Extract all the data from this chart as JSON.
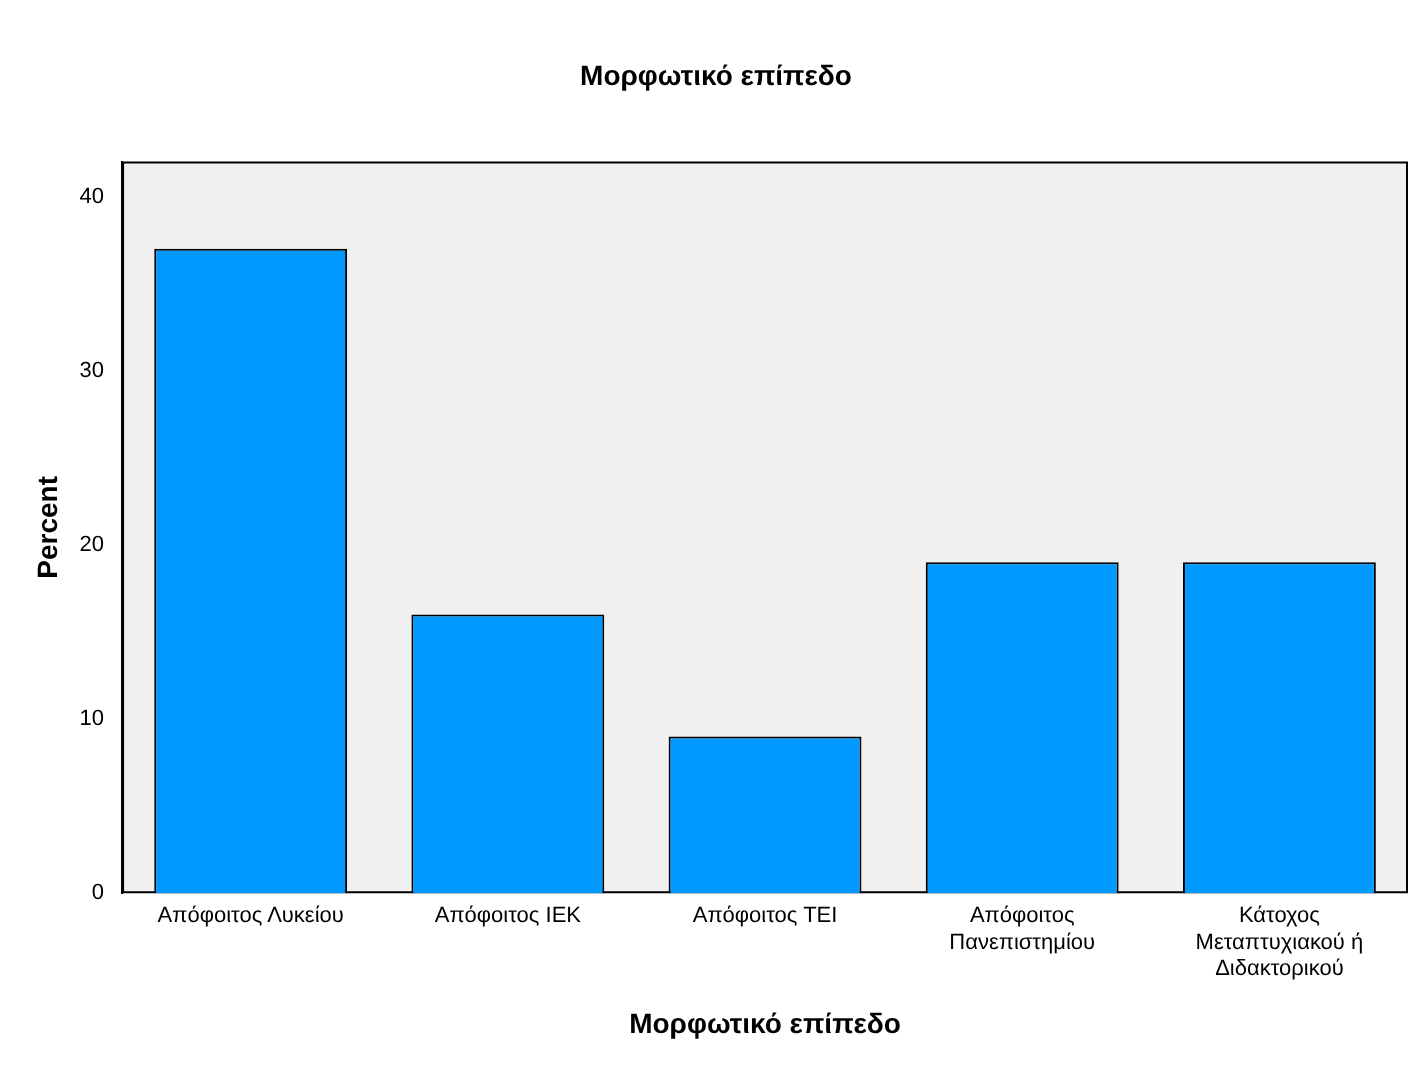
{
  "chart_data": {
    "type": "bar",
    "title": "Μορφωτικό επίπεδο",
    "xlabel": "Μορφωτικό επίπεδο",
    "ylabel": "Percent",
    "categories": [
      "Απόφοιτος Λυκείου",
      "Απόφοιτος ΙΕΚ",
      "Απόφοιτος ΤΕΙ",
      "Απόφοιτος Πανεπιστημίου",
      "Κάτοχος Μεταπτυχιακού ή Διδακτορικού"
    ],
    "values": [
      37,
      16,
      9,
      19,
      19
    ],
    "color": "#0099ff",
    "ylim": [
      0,
      42
    ],
    "yticks": [
      0,
      10,
      20,
      30,
      40
    ],
    "grid": false,
    "legend": false
  }
}
